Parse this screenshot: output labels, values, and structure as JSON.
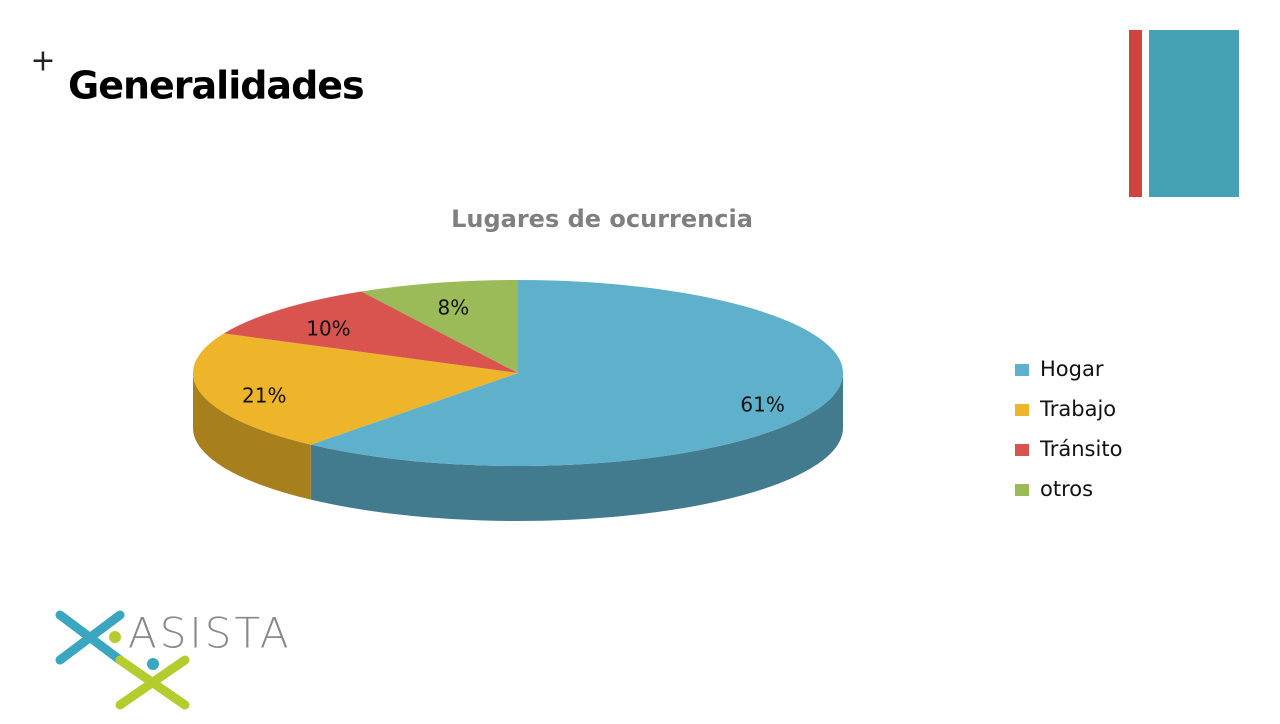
{
  "header": {
    "marker": "+",
    "title": "Generalidades"
  },
  "chart_data": {
    "type": "pie",
    "title": "Lugares de ocurrencia",
    "categories": [
      "Hogar",
      "Trabajo",
      "Tránsito",
      "otros"
    ],
    "values": [
      61,
      21,
      10,
      8
    ],
    "value_labels": [
      "61%",
      "21%",
      "10%",
      "8%"
    ],
    "colors": [
      "#5fb0cb",
      "#efb52a",
      "#d9534f",
      "#9bbb59"
    ],
    "legend": "right"
  },
  "logo": {
    "text": "ASISTA"
  }
}
